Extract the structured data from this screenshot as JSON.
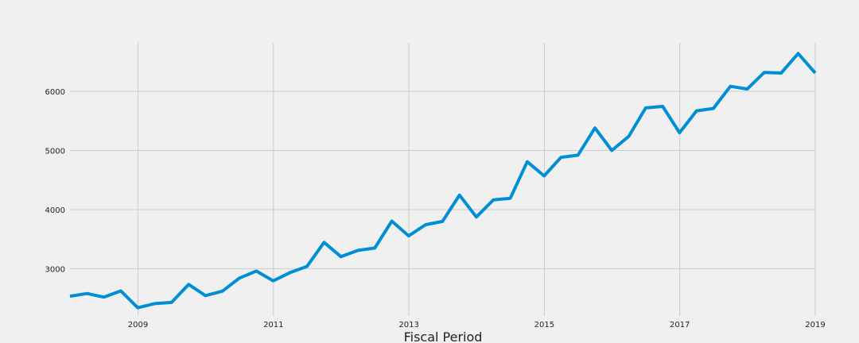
{
  "chart_data": {
    "type": "line",
    "title": "",
    "xlabel": "Fiscal Period",
    "ylabel": "",
    "xlim": [
      2007.996,
      2019.0
    ],
    "ylim": [
      2200,
      6820
    ],
    "grid": true,
    "legend": "none",
    "x_ticks": [
      2009,
      2011,
      2013,
      2015,
      2017,
      2019
    ],
    "x_tick_labels": [
      "2009",
      "2011",
      "2013",
      "2015",
      "2017",
      "2019"
    ],
    "y_ticks": [
      3000,
      4000,
      5000,
      6000
    ],
    "y_tick_labels": [
      "3000",
      "4000",
      "5000",
      "6000"
    ],
    "colors": {
      "background": "#f0f0f0",
      "grid": "#cbcbcb",
      "line": "#008fd5",
      "text": "#222222"
    },
    "series": [
      {
        "x": [
          2007.996,
          2008.247,
          2008.496,
          2008.747,
          2008.996,
          2009.247,
          2009.496,
          2009.747,
          2009.996,
          2010.247,
          2010.496,
          2010.747,
          2010.996,
          2011.247,
          2011.496,
          2011.747,
          2011.996,
          2012.247,
          2012.496,
          2012.747,
          2012.996,
          2013.247,
          2013.496,
          2013.747,
          2013.996,
          2014.247,
          2014.496,
          2014.747,
          2014.996,
          2015.247,
          2015.496,
          2015.747,
          2015.996,
          2016.247,
          2016.496,
          2016.747,
          2016.996,
          2017.247,
          2017.496,
          2017.747,
          2017.996,
          2018.247,
          2018.496,
          2018.747,
          2019.0
        ],
        "values": [
          2535,
          2580,
          2520,
          2625,
          2340,
          2410,
          2430,
          2735,
          2545,
          2620,
          2840,
          2960,
          2795,
          2935,
          3040,
          3445,
          3205,
          3310,
          3350,
          3805,
          3555,
          3745,
          3800,
          4245,
          3875,
          4165,
          4190,
          4810,
          4570,
          4885,
          4920,
          5380,
          5000,
          5240,
          5720,
          5745,
          5300,
          5670,
          5710,
          6085,
          6040,
          6320,
          6310,
          6640,
          6310
        ]
      }
    ]
  }
}
